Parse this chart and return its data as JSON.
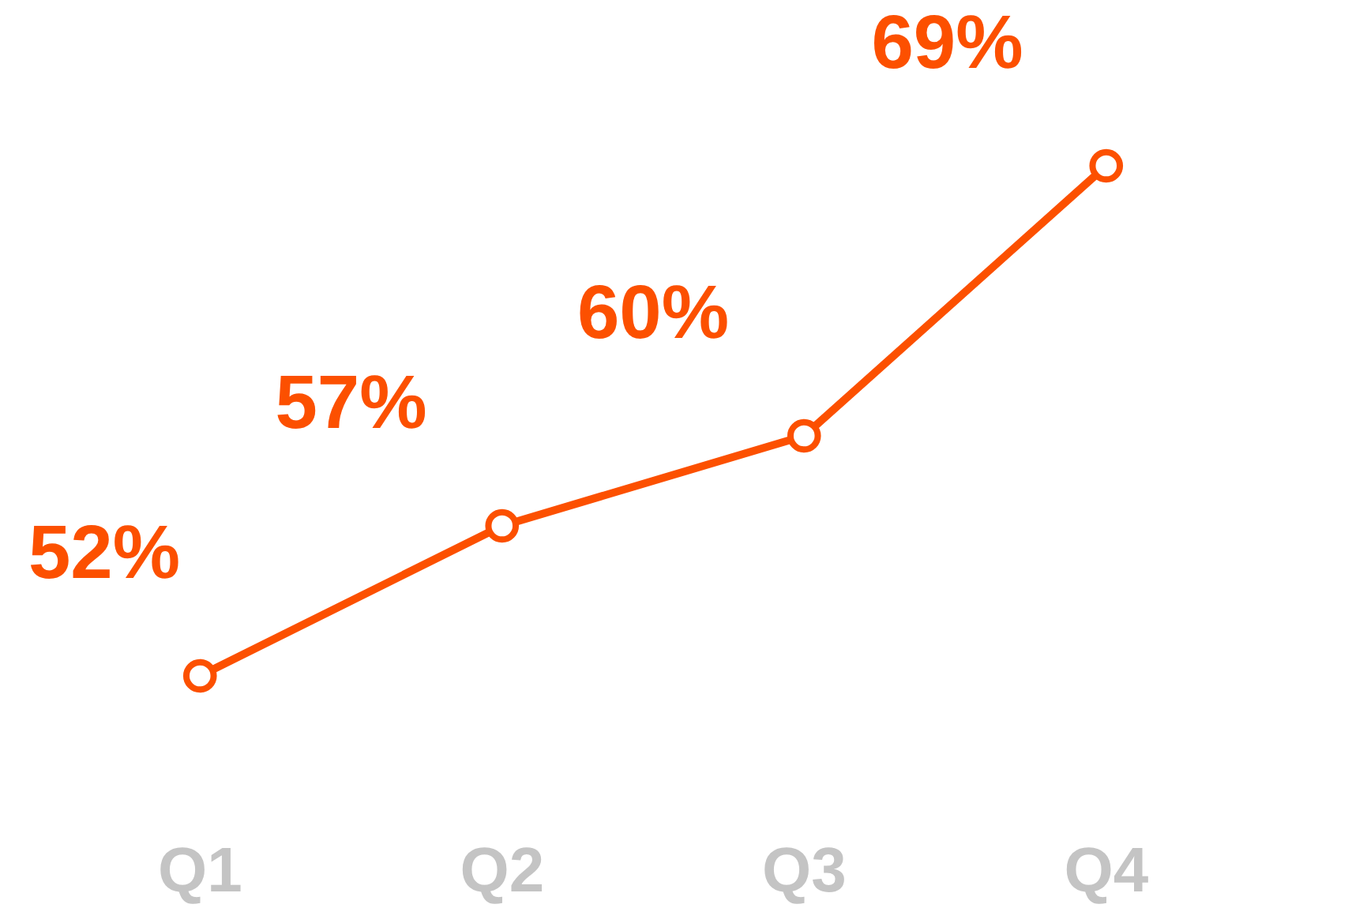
{
  "chart_data": {
    "type": "line",
    "categories": [
      "Q1",
      "Q2",
      "Q3",
      "Q4"
    ],
    "series": [
      {
        "color": "#fc5000",
        "values": [
          52,
          57,
          60,
          69
        ],
        "value_labels": [
          "52%",
          "57%",
          "60%",
          "69%"
        ]
      }
    ],
    "grid": false,
    "marker": "circle",
    "line_style": "solid"
  }
}
